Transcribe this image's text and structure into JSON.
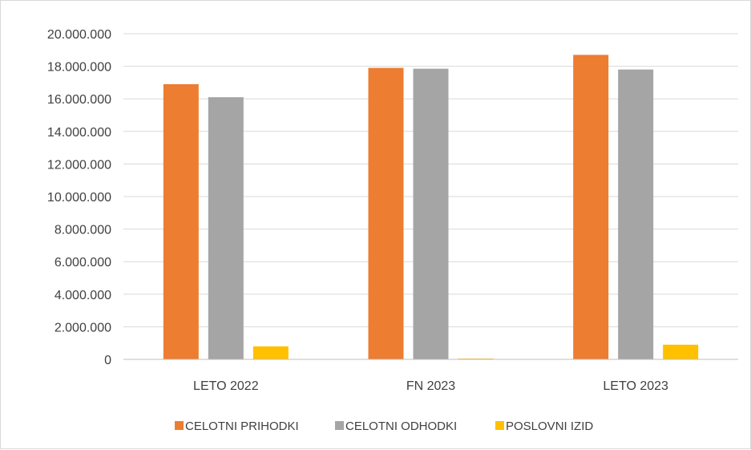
{
  "chart_data": {
    "type": "bar",
    "title": "",
    "xlabel": "",
    "ylabel": "",
    "categories": [
      "LETO 2022",
      "FN 2023",
      "LETO 2023"
    ],
    "series": [
      {
        "name": "CELOTNI PRIHODKI",
        "color": "#ED7D31",
        "values": [
          16900000,
          17900000,
          18700000
        ]
      },
      {
        "name": "CELOTNI ODHODKI",
        "color": "#A5A5A5",
        "values": [
          16100000,
          17850000,
          17800000
        ]
      },
      {
        "name": "POSLOVNI IZID",
        "color": "#FFC000",
        "values": [
          800000,
          50000,
          900000
        ]
      }
    ],
    "ylim": [
      0,
      20000000
    ],
    "yticks": [
      "0",
      "2.000.000",
      "4.000.000",
      "6.000.000",
      "8.000.000",
      "10.000.000",
      "12.000.000",
      "14.000.000",
      "16.000.000",
      "18.000.000",
      "20.000.000"
    ],
    "grid": true,
    "legend_position": "bottom",
    "gridline_color": "#D9D9D9",
    "axis_color": "#BFBFBF"
  }
}
